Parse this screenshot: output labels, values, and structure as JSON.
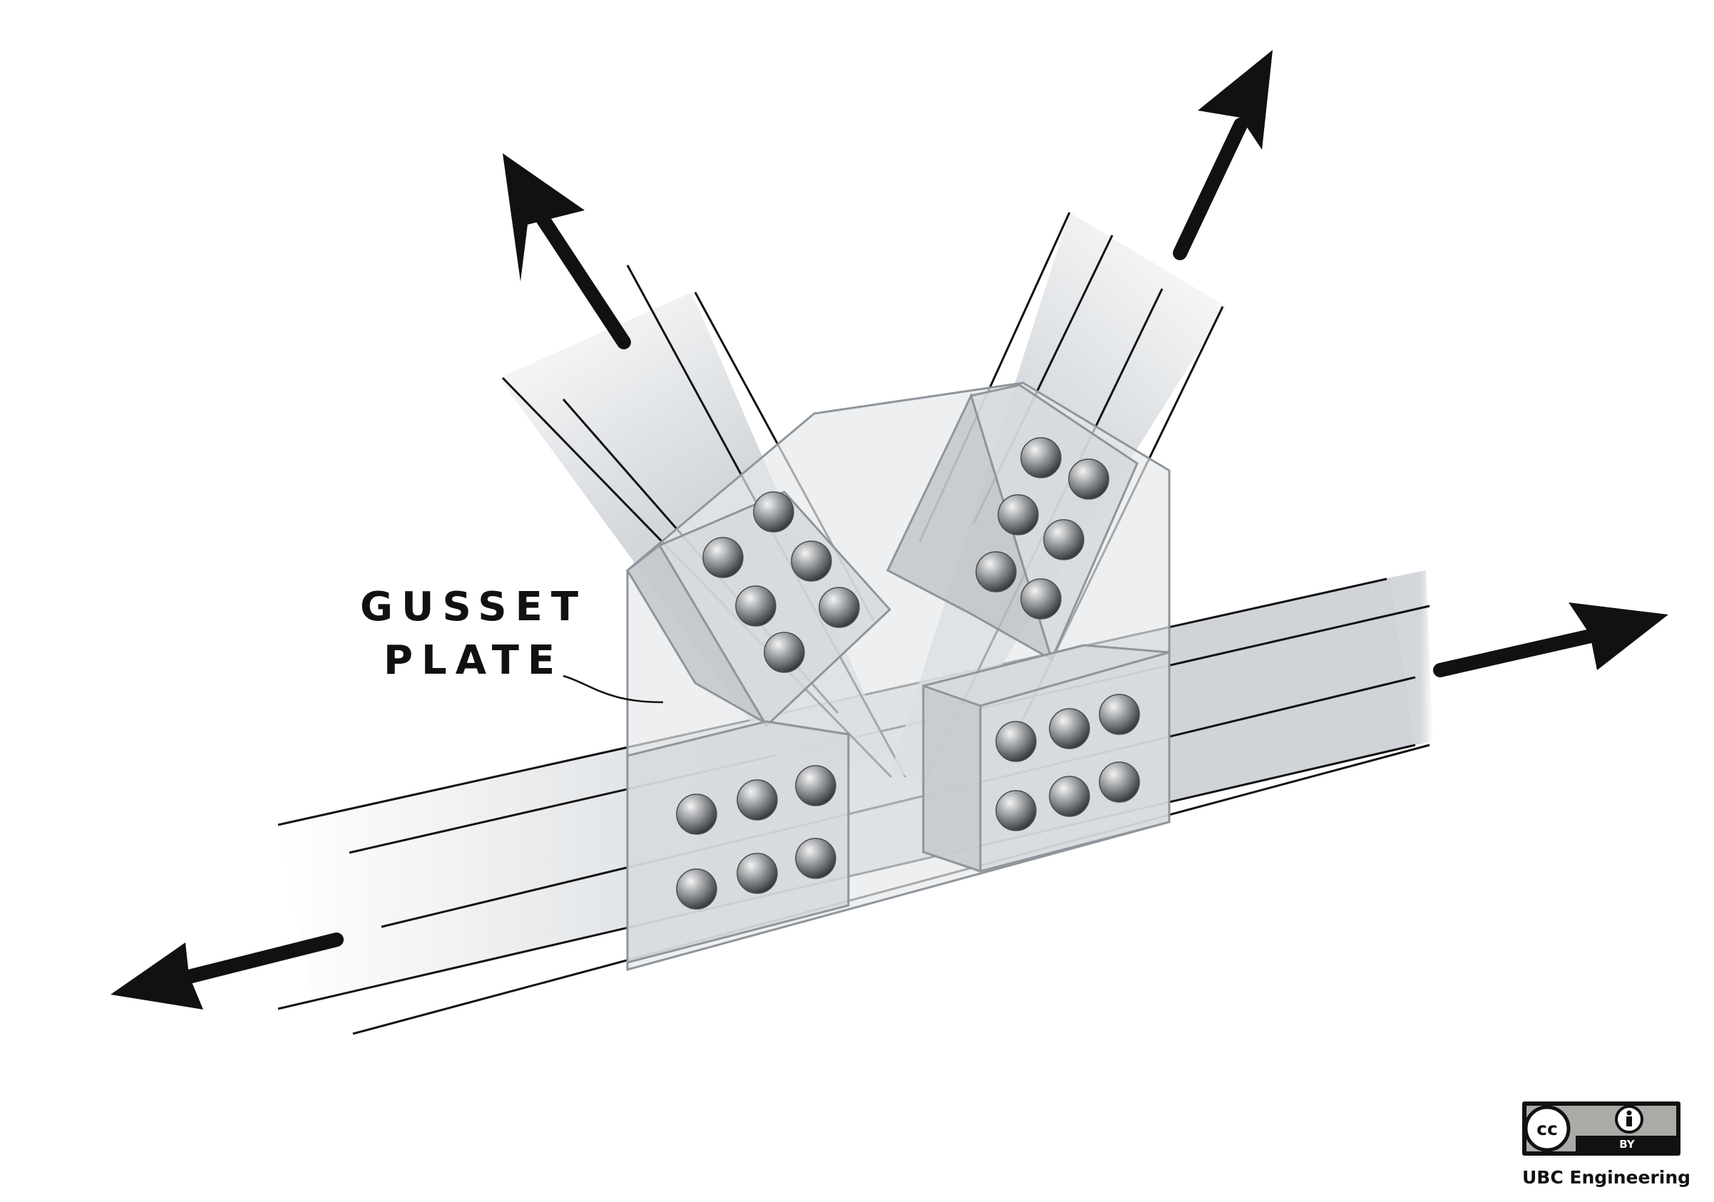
{
  "callout": {
    "line1": "GUSSET",
    "line2": "PLATE"
  },
  "credit": {
    "badge_cc": "cc",
    "badge_by": "BY",
    "attribution": "UBC Engineering"
  },
  "colors": {
    "ink": "#111111",
    "member_fill": "#c9ced3",
    "plate_fill": "#e6e8ea",
    "plate_stroke": "#8f959b",
    "bolt_dark": "#3c3f42",
    "bolt_light": "#f2f2f2",
    "badge_grey": "#a9aca6"
  },
  "icons": [
    "force-arrow-icon",
    "bolt-icon",
    "cc-icon",
    "by-person-icon"
  ]
}
